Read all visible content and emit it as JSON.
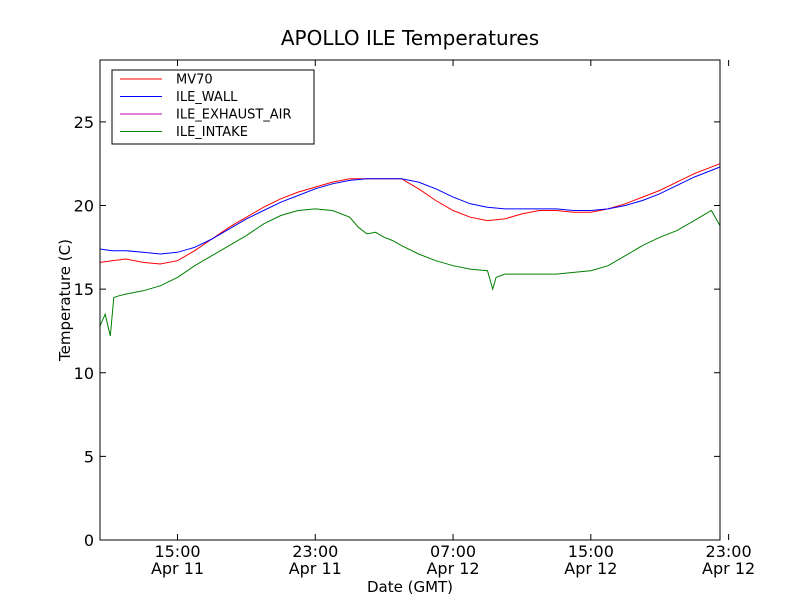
{
  "chart_data": {
    "type": "line",
    "title": "APOLLO ILE Temperatures",
    "xlabel": "Date (GMT)",
    "ylabel": "Temperature (C)",
    "xlim": [
      10.5,
      46.5
    ],
    "ylim": [
      0,
      28.7
    ],
    "yticks": [
      0,
      5,
      10,
      15,
      20,
      25
    ],
    "xticks": [
      {
        "hour": 15,
        "line1": "15:00",
        "line2": "Apr 11"
      },
      {
        "hour": 23,
        "line1": "23:00",
        "line2": "Apr 11"
      },
      {
        "hour": 31,
        "line1": "07:00",
        "line2": "Apr 12"
      },
      {
        "hour": 39,
        "line1": "15:00",
        "line2": "Apr 12"
      },
      {
        "hour": 47,
        "line1": "23:00",
        "line2": "Apr 12"
      }
    ],
    "x_units": "hours since Apr 11 00:00 GMT",
    "legend_position": "upper-left",
    "series": [
      {
        "name": "MV70",
        "color": "#ff0000",
        "x": [
          10.5,
          11.2,
          12.0,
          13.0,
          14.0,
          15.0,
          16.0,
          17.0,
          18.0,
          19.0,
          20.0,
          21.0,
          22.0,
          23.0,
          24.0,
          25.0,
          26.0,
          27.0,
          28.0,
          29.0,
          30.0,
          31.0,
          32.0,
          33.0,
          34.0,
          35.0,
          36.0,
          37.0,
          38.0,
          39.0,
          40.0,
          41.0,
          42.0,
          43.0,
          44.0,
          45.0,
          46.5
        ],
        "values": [
          16.6,
          16.7,
          16.8,
          16.6,
          16.5,
          16.7,
          17.3,
          18.0,
          18.7,
          19.3,
          19.9,
          20.4,
          20.8,
          21.1,
          21.4,
          21.6,
          21.6,
          21.6,
          21.6,
          21.0,
          20.3,
          19.7,
          19.3,
          19.1,
          19.2,
          19.5,
          19.7,
          19.7,
          19.6,
          19.6,
          19.8,
          20.1,
          20.5,
          20.9,
          21.4,
          21.9,
          22.5
        ]
      },
      {
        "name": "ILE_WALL",
        "color": "#0000ff",
        "x": [
          10.5,
          11.2,
          12.0,
          13.0,
          14.0,
          15.0,
          16.0,
          17.0,
          18.0,
          19.0,
          20.0,
          21.0,
          22.0,
          23.0,
          24.0,
          25.0,
          26.0,
          27.0,
          28.0,
          29.0,
          30.0,
          31.0,
          32.0,
          33.0,
          34.0,
          35.0,
          36.0,
          37.0,
          38.0,
          39.0,
          40.0,
          41.0,
          42.0,
          43.0,
          44.0,
          45.0,
          46.5
        ],
        "values": [
          17.4,
          17.3,
          17.3,
          17.2,
          17.1,
          17.2,
          17.5,
          18.0,
          18.6,
          19.2,
          19.7,
          20.2,
          20.6,
          21.0,
          21.3,
          21.5,
          21.6,
          21.6,
          21.6,
          21.4,
          21.0,
          20.5,
          20.1,
          19.9,
          19.8,
          19.8,
          19.8,
          19.8,
          19.7,
          19.7,
          19.8,
          20.0,
          20.3,
          20.7,
          21.2,
          21.7,
          22.3
        ]
      },
      {
        "name": "ILE_EXHAUST_AIR",
        "color": "#bf00bf",
        "x": [],
        "values": []
      },
      {
        "name": "ILE_INTAKE",
        "color": "#008000",
        "x": [
          10.5,
          10.8,
          11.1,
          11.3,
          11.6,
          12.0,
          13.0,
          14.0,
          15.0,
          16.0,
          17.0,
          18.0,
          19.0,
          20.0,
          21.0,
          22.0,
          23.0,
          24.0,
          25.0,
          25.5,
          26.0,
          26.5,
          27.0,
          27.5,
          28.0,
          29.0,
          30.0,
          31.0,
          32.0,
          33.0,
          33.3,
          33.5,
          34.0,
          35.0,
          36.0,
          37.0,
          38.0,
          39.0,
          40.0,
          41.0,
          42.0,
          43.0,
          44.0,
          45.0,
          46.0,
          46.5
        ],
        "values": [
          12.8,
          13.5,
          12.2,
          14.5,
          14.6,
          14.7,
          14.9,
          15.2,
          15.7,
          16.4,
          17.0,
          17.6,
          18.2,
          18.9,
          19.4,
          19.7,
          19.8,
          19.7,
          19.3,
          18.7,
          18.3,
          18.4,
          18.1,
          17.9,
          17.6,
          17.1,
          16.7,
          16.4,
          16.2,
          16.1,
          15.0,
          15.7,
          15.9,
          15.9,
          15.9,
          15.9,
          16.0,
          16.1,
          16.4,
          17.0,
          17.6,
          18.1,
          18.5,
          19.1,
          19.7,
          18.8
        ]
      }
    ]
  }
}
